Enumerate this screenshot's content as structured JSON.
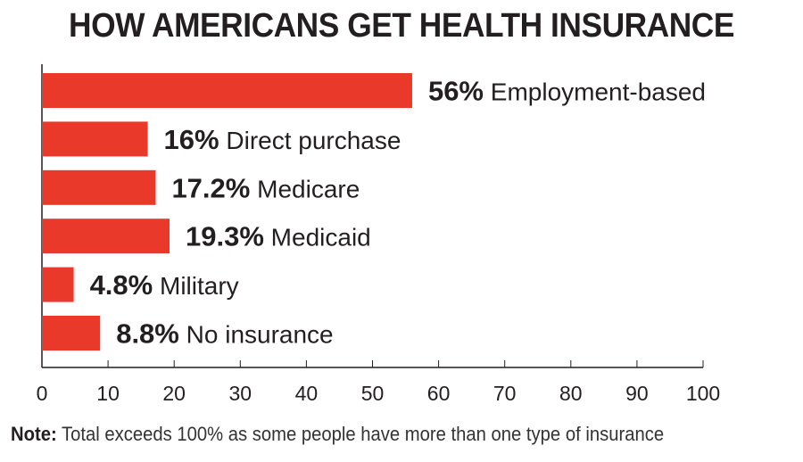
{
  "chart_data": {
    "type": "bar",
    "orientation": "horizontal",
    "title": "HOW AMERICANS GET HEALTH INSURANCE",
    "categories": [
      "Employment-based",
      "Direct purchase",
      "Medicare",
      "Medicaid",
      "Military",
      "No insurance"
    ],
    "values": [
      56,
      16,
      17.2,
      19.3,
      4.8,
      8.8
    ],
    "value_labels": [
      "56%",
      "16%",
      "17.2%",
      "19.3%",
      "4.8%",
      "8.8%"
    ],
    "xlim": [
      0,
      100
    ],
    "xticks": [
      "0",
      "10",
      "20",
      "30",
      "40",
      "50",
      "60",
      "70",
      "80",
      "90",
      "100"
    ],
    "xlabel": "",
    "ylabel": "",
    "grid": false,
    "bar_color": "#e8392b"
  },
  "note": {
    "label": "Note:",
    "text": "Total exceeds 100% as some people have more than one type of insurance"
  }
}
